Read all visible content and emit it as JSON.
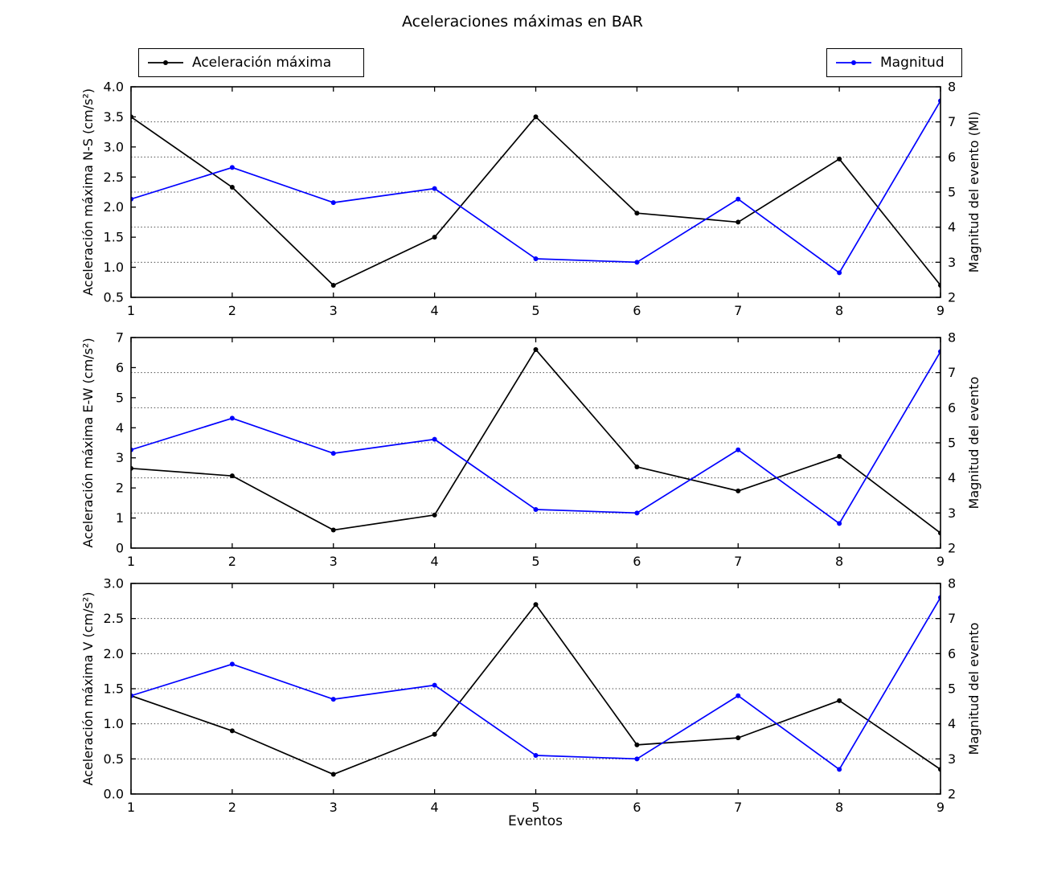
{
  "figure": {
    "title": "Aceleraciones máximas en BAR",
    "xlabel": "Eventos",
    "legends": {
      "accel": "Aceleración máxima",
      "magnitud": "Magnitud"
    },
    "colors": {
      "accel": "#000000",
      "magnitud": "#0000ff",
      "grid": "#000000"
    }
  },
  "chart_data": [
    {
      "type": "line",
      "id": "ns",
      "x": [
        1,
        2,
        3,
        4,
        5,
        6,
        7,
        8,
        9
      ],
      "left_axis": {
        "label": "Aceleración máxima N-S (cm/s²)",
        "ylim": [
          0.5,
          4.0
        ],
        "ticks": [
          0.5,
          1.0,
          1.5,
          2.0,
          2.5,
          3.0,
          3.5,
          4.0
        ],
        "tick_labels": [
          "0.5",
          "1.0",
          "1.5",
          "2.0",
          "2.5",
          "3.0",
          "3.5",
          "4.0"
        ]
      },
      "right_axis": {
        "label": "Magnitud del evento (Ml)",
        "ylim": [
          2,
          8
        ],
        "ticks": [
          2,
          3,
          4,
          5,
          6,
          7,
          8
        ],
        "tick_labels": [
          "2",
          "3",
          "4",
          "5",
          "6",
          "7",
          "8"
        ]
      },
      "grid": "horizontal dotted at right-axis ticks",
      "legend_position": "above plot, left and right",
      "series": [
        {
          "name": "Aceleración máxima",
          "key": "aceleracion",
          "axis": "left",
          "color": "#000000",
          "values": [
            3.5,
            2.33,
            0.7,
            1.5,
            3.5,
            1.9,
            1.75,
            2.8,
            0.7
          ]
        },
        {
          "name": "Magnitud",
          "key": "magnitud",
          "axis": "right",
          "color": "#0000ff",
          "values": [
            4.8,
            5.7,
            4.7,
            5.1,
            3.1,
            3.0,
            4.8,
            2.7,
            7.6
          ]
        }
      ]
    },
    {
      "type": "line",
      "id": "ew",
      "x": [
        1,
        2,
        3,
        4,
        5,
        6,
        7,
        8,
        9
      ],
      "left_axis": {
        "label": "Aceleración máxima E-W (cm/s²)",
        "ylim": [
          0,
          7
        ],
        "ticks": [
          0,
          1,
          2,
          3,
          4,
          5,
          6,
          7
        ],
        "tick_labels": [
          "0",
          "1",
          "2",
          "3",
          "4",
          "5",
          "6",
          "7"
        ]
      },
      "right_axis": {
        "label": "Magnitud del evento",
        "ylim": [
          2,
          8
        ],
        "ticks": [
          2,
          3,
          4,
          5,
          6,
          7,
          8
        ],
        "tick_labels": [
          "2",
          "3",
          "4",
          "5",
          "6",
          "7",
          "8"
        ]
      },
      "grid": "horizontal dotted at right-axis ticks",
      "series": [
        {
          "name": "Aceleración máxima",
          "key": "aceleracion",
          "axis": "left",
          "color": "#000000",
          "values": [
            2.65,
            2.4,
            0.6,
            1.1,
            6.6,
            2.7,
            1.9,
            3.05,
            0.5
          ]
        },
        {
          "name": "Magnitud",
          "key": "magnitud",
          "axis": "right",
          "color": "#0000ff",
          "values": [
            4.8,
            5.7,
            4.7,
            5.1,
            3.1,
            3.0,
            4.8,
            2.7,
            7.6
          ]
        }
      ]
    },
    {
      "type": "line",
      "id": "v",
      "x": [
        1,
        2,
        3,
        4,
        5,
        6,
        7,
        8,
        9
      ],
      "xlabel": "Eventos",
      "left_axis": {
        "label": "Aceleración máxima V (cm/s²)",
        "ylim": [
          0.0,
          3.0
        ],
        "ticks": [
          0.0,
          0.5,
          1.0,
          1.5,
          2.0,
          2.5,
          3.0
        ],
        "tick_labels": [
          "0.0",
          "0.5",
          "1.0",
          "1.5",
          "2.0",
          "2.5",
          "3.0"
        ]
      },
      "right_axis": {
        "label": "Magnitud del evento",
        "ylim": [
          2,
          8
        ],
        "ticks": [
          2,
          3,
          4,
          5,
          6,
          7,
          8
        ],
        "tick_labels": [
          "2",
          "3",
          "4",
          "5",
          "6",
          "7",
          "8"
        ]
      },
      "grid": "horizontal dotted at right-axis ticks",
      "series": [
        {
          "name": "Aceleración máxima",
          "key": "aceleracion",
          "axis": "left",
          "color": "#000000",
          "values": [
            1.4,
            0.9,
            0.28,
            0.85,
            2.7,
            0.7,
            0.8,
            1.33,
            0.35
          ]
        },
        {
          "name": "Magnitud",
          "key": "magnitud",
          "axis": "right",
          "color": "#0000ff",
          "values": [
            4.8,
            5.7,
            4.7,
            5.1,
            3.1,
            3.0,
            4.8,
            2.7,
            7.6
          ]
        }
      ]
    }
  ]
}
